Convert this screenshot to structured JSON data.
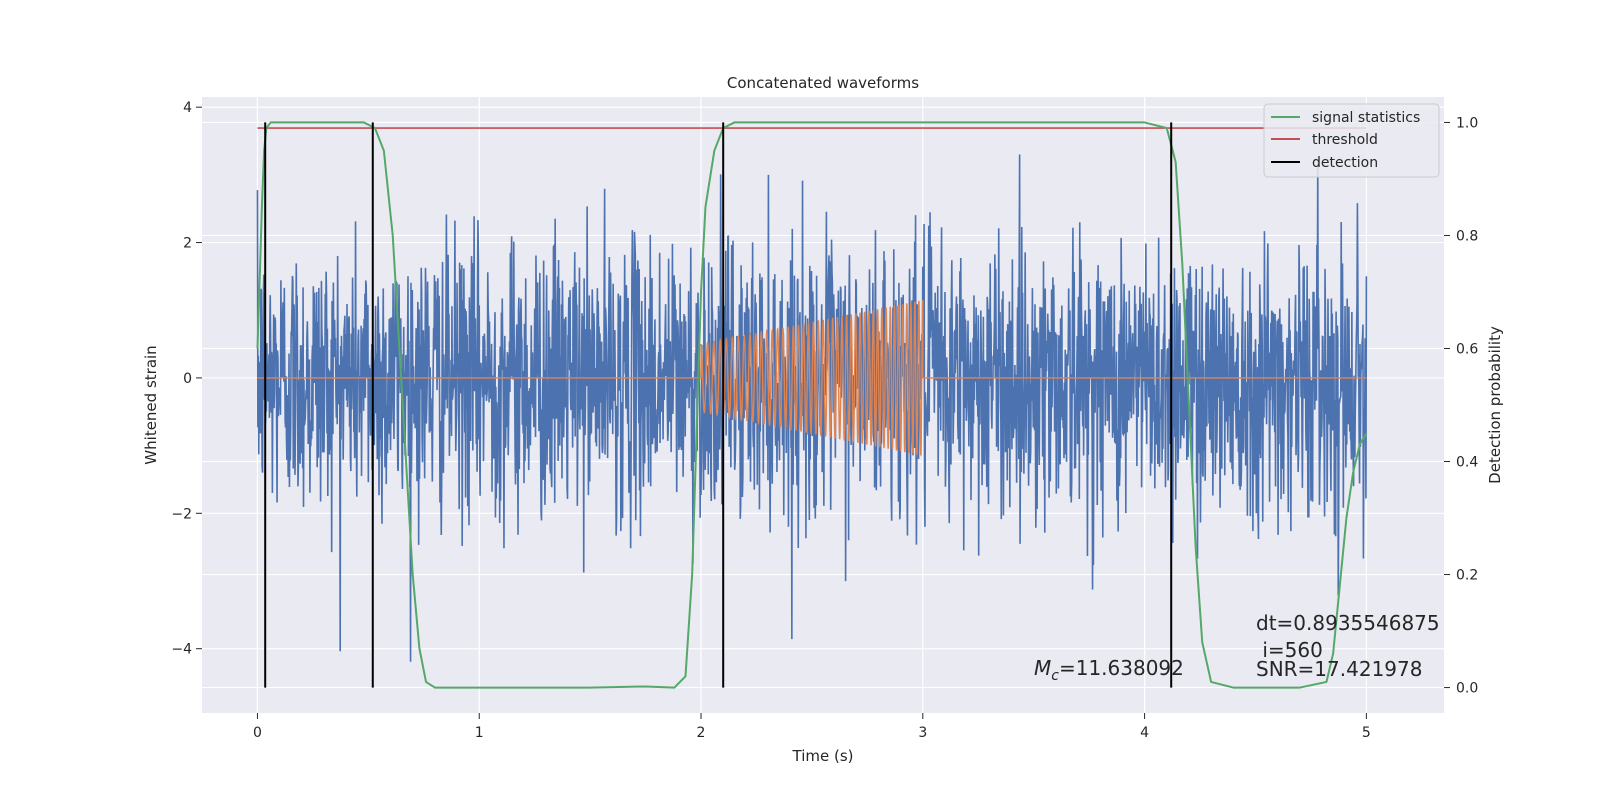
{
  "chart_data": {
    "type": "line",
    "title": "Concatenated waveforms",
    "xlabel": "Time (s)",
    "ylabel": "Whitened strain",
    "y2label": "Detection probability",
    "xlim": [
      -0.25,
      5.35
    ],
    "ylim": [
      -4.95,
      4.15
    ],
    "y2lim": [
      -0.045,
      1.045
    ],
    "xticks": [
      0,
      1,
      2,
      3,
      4,
      5
    ],
    "yticks": [
      -4,
      -2,
      0,
      2,
      4
    ],
    "y2ticks": [
      0.0,
      0.2,
      0.4,
      0.6,
      0.8,
      1.0
    ],
    "grid": true,
    "legend_position": "top-right",
    "noise": {
      "x_range": [
        0,
        5
      ],
      "amplitude_typical": 1.0,
      "min": -4.5,
      "max": 3.3,
      "color": "#4c72b0"
    },
    "injected_signal": {
      "x_range": [
        2.0,
        3.0
      ],
      "amplitude_start": 0.5,
      "amplitude_end": 1.15,
      "cycles": 45,
      "color": "#dd8452"
    },
    "series": [
      {
        "name": "signal statistics",
        "axis": "y2",
        "color": "#55a868",
        "x": [
          0.0,
          0.01,
          0.02,
          0.03,
          0.04,
          0.06,
          0.1,
          0.3,
          0.48,
          0.53,
          0.57,
          0.61,
          0.64,
          0.67,
          0.7,
          0.73,
          0.76,
          0.8,
          1.0,
          1.5,
          1.75,
          1.88,
          1.93,
          1.96,
          1.98,
          2.0,
          2.02,
          2.06,
          2.1,
          2.15,
          2.25,
          3.0,
          4.0,
          4.1,
          4.14,
          4.17,
          4.2,
          4.23,
          4.26,
          4.3,
          4.4,
          4.7,
          4.82,
          4.85,
          4.88,
          4.91,
          4.94,
          4.97,
          5.0
        ],
        "y": [
          0.6,
          0.72,
          0.85,
          0.95,
          0.99,
          1.0,
          1.0,
          1.0,
          1.0,
          0.99,
          0.95,
          0.8,
          0.6,
          0.4,
          0.2,
          0.07,
          0.01,
          0.0,
          0.0,
          0.0,
          0.002,
          0.0,
          0.02,
          0.2,
          0.45,
          0.7,
          0.85,
          0.95,
          0.99,
          1.0,
          1.0,
          1.0,
          1.0,
          0.99,
          0.93,
          0.75,
          0.5,
          0.25,
          0.08,
          0.01,
          0.0,
          0.0,
          0.01,
          0.06,
          0.18,
          0.3,
          0.38,
          0.43,
          0.45
        ]
      },
      {
        "name": "threshold",
        "axis": "y2",
        "color": "#c44e52",
        "value": 0.99
      },
      {
        "name": "detection",
        "axis": "y2",
        "color": "#000000",
        "x_values": [
          0.035,
          0.52,
          2.1,
          4.12
        ],
        "y_range": [
          0,
          1
        ]
      }
    ],
    "annotations": [
      {
        "id": "dt",
        "text": "dt=0.8935546875"
      },
      {
        "id": "i",
        "text": " i=560"
      },
      {
        "id": "snr",
        "text": "SNR=17.421978"
      },
      {
        "id": "mc",
        "base": "M",
        "sub": "c",
        "text": "=11.638092"
      }
    ]
  }
}
